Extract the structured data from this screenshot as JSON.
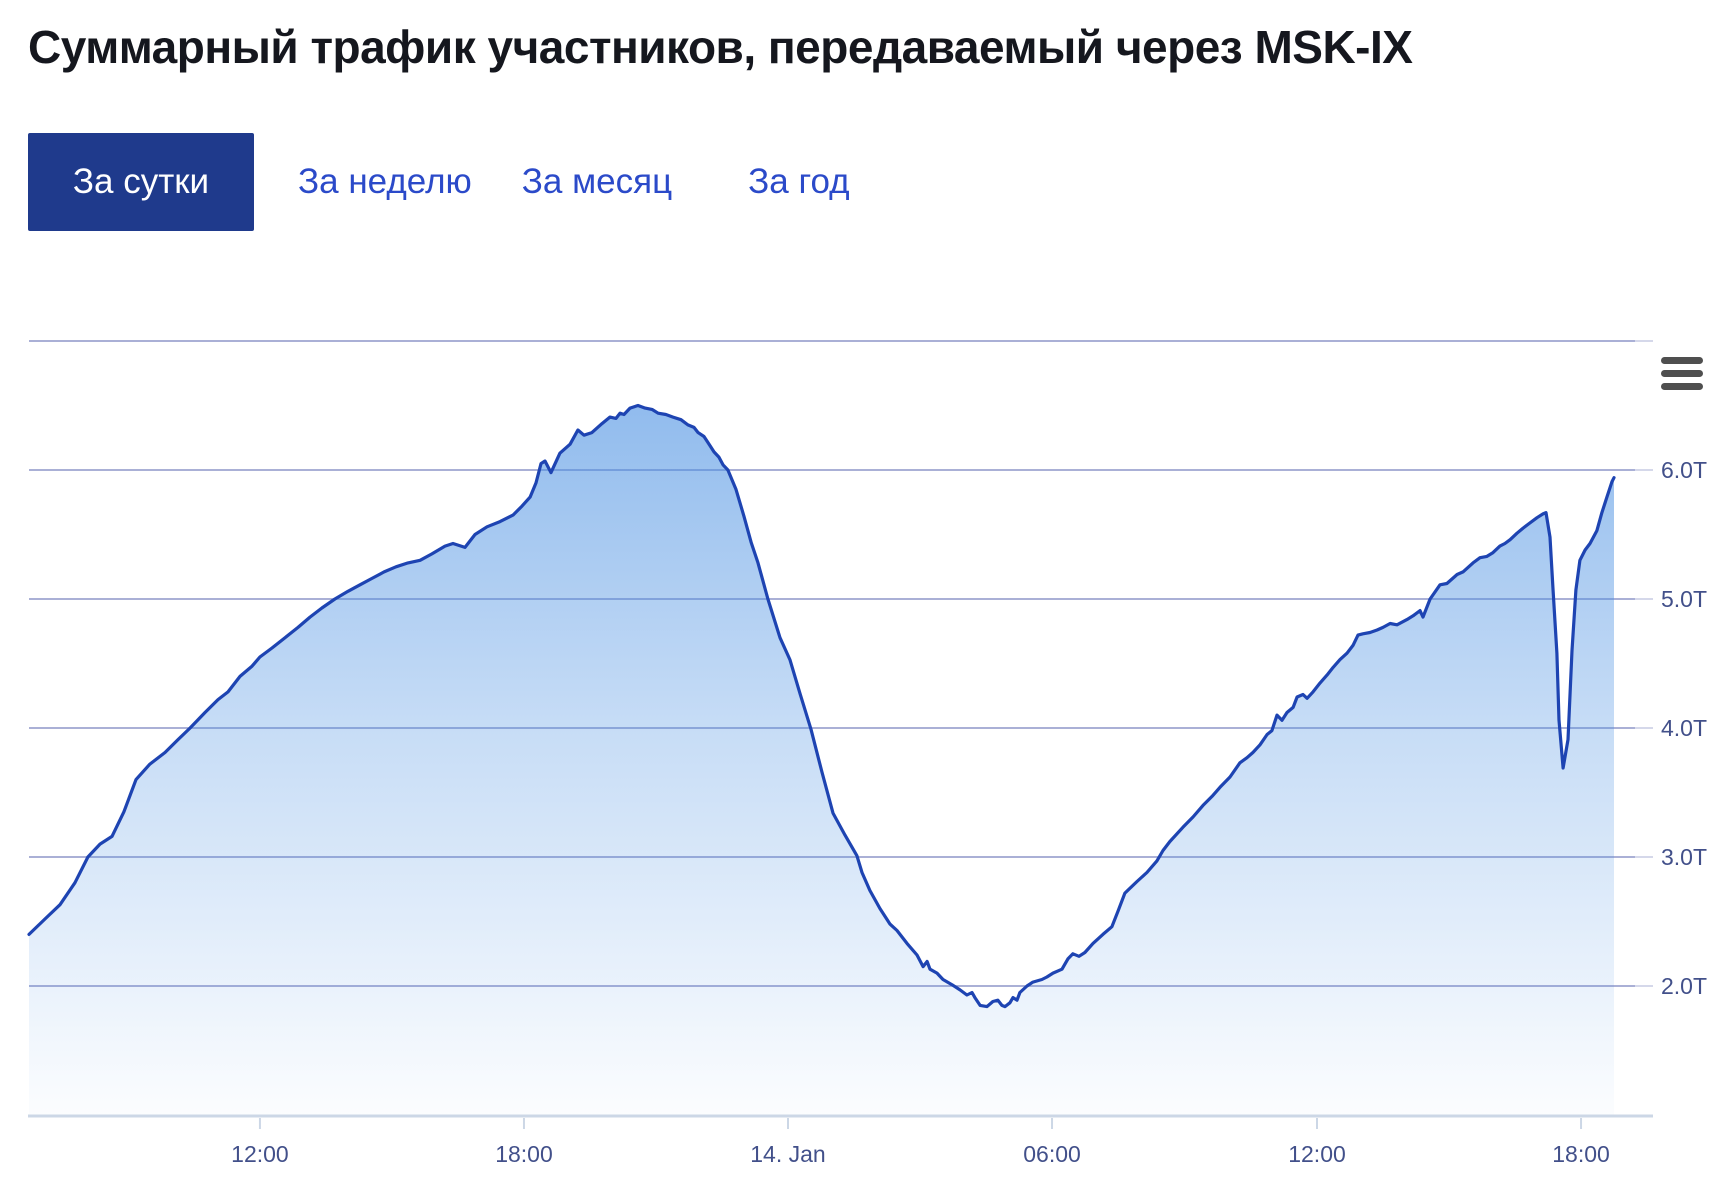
{
  "header": {
    "title": "Суммарный трафик участников, передаваемый через MSK-IX"
  },
  "tabs": {
    "items": [
      {
        "label": "За сутки",
        "active": true
      },
      {
        "label": "За неделю",
        "active": false
      },
      {
        "label": "За месяц",
        "active": false
      },
      {
        "label": "За год",
        "active": false
      }
    ]
  },
  "chart": {
    "context_menu_icon": "hamburger-menu-icon",
    "colors": {
      "title_text": "#15171e",
      "accent_tab_bg": "#1f3a8c",
      "tab_link": "#2b4ac9",
      "line": "#1e44b2",
      "fill_base": "#4a90e2",
      "gridline": "#8e96c9",
      "tick_extension": "#c7cce4",
      "axis_line": "#ccd7e6",
      "axis_label": "#42508a",
      "menu_icon_color": "#4f4f4f"
    }
  },
  "chart_data": {
    "type": "area",
    "title": "Суммарный трафик участников, передаваемый через MSK-IX",
    "grid": true,
    "legend": false,
    "x_axis": {
      "type": "time",
      "ticks": [
        {
          "label": "12:00",
          "f": 0.1438
        },
        {
          "label": "18:00",
          "f": 0.3082
        },
        {
          "label": "14. Jan",
          "f": 0.4726
        },
        {
          "label": "06:00",
          "f": 0.637
        },
        {
          "label": "12:00",
          "f": 0.802
        },
        {
          "label": "18:00",
          "f": 0.9664
        }
      ]
    },
    "y_axis": {
      "min": 1.0,
      "max": 7.0,
      "gridline_interval": 1.0,
      "labels_side": "right",
      "unit_suffix": "T",
      "labeled_ticks": [
        {
          "value": 6,
          "label": "6.0T"
        },
        {
          "value": 5,
          "label": "5.0T"
        },
        {
          "value": 4,
          "label": "4.0T"
        },
        {
          "value": 3,
          "label": "3.0T"
        },
        {
          "value": 2,
          "label": "2.0T"
        }
      ]
    },
    "series": [
      {
        "name": "Суммарный трафик",
        "unit": "T",
        "points": [
          [
            0.0,
            2.4
          ],
          [
            0.01,
            2.52
          ],
          [
            0.0193,
            2.63
          ],
          [
            0.0286,
            2.8
          ],
          [
            0.0367,
            3.0
          ],
          [
            0.0442,
            3.1
          ],
          [
            0.0517,
            3.16
          ],
          [
            0.0591,
            3.35
          ],
          [
            0.0666,
            3.6
          ],
          [
            0.0753,
            3.72
          ],
          [
            0.0847,
            3.81
          ],
          [
            0.0928,
            3.91
          ],
          [
            0.1003,
            4.0
          ],
          [
            0.1096,
            4.12
          ],
          [
            0.1177,
            4.22
          ],
          [
            0.1239,
            4.28
          ],
          [
            0.1314,
            4.4
          ],
          [
            0.1389,
            4.48
          ],
          [
            0.1438,
            4.55
          ],
          [
            0.1513,
            4.62
          ],
          [
            0.1594,
            4.7
          ],
          [
            0.1675,
            4.78
          ],
          [
            0.175,
            4.86
          ],
          [
            0.1824,
            4.93
          ],
          [
            0.1905,
            5.0
          ],
          [
            0.1986,
            5.06
          ],
          [
            0.2061,
            5.11
          ],
          [
            0.2136,
            5.16
          ],
          [
            0.2211,
            5.21
          ],
          [
            0.2285,
            5.25
          ],
          [
            0.236,
            5.28
          ],
          [
            0.2435,
            5.3
          ],
          [
            0.2509,
            5.35
          ],
          [
            0.259,
            5.41
          ],
          [
            0.264,
            5.43
          ],
          [
            0.2715,
            5.4
          ],
          [
            0.2777,
            5.5
          ],
          [
            0.2852,
            5.56
          ],
          [
            0.2933,
            5.6
          ],
          [
            0.3014,
            5.65
          ],
          [
            0.307,
            5.72
          ],
          [
            0.312,
            5.79
          ],
          [
            0.3157,
            5.9
          ],
          [
            0.3188,
            6.05
          ],
          [
            0.3213,
            6.07
          ],
          [
            0.325,
            5.98
          ],
          [
            0.3306,
            6.13
          ],
          [
            0.3369,
            6.2
          ],
          [
            0.3418,
            6.31
          ],
          [
            0.3456,
            6.27
          ],
          [
            0.3505,
            6.29
          ],
          [
            0.3568,
            6.36
          ],
          [
            0.3617,
            6.41
          ],
          [
            0.3655,
            6.4
          ],
          [
            0.368,
            6.44
          ],
          [
            0.3705,
            6.43
          ],
          [
            0.3742,
            6.48
          ],
          [
            0.3792,
            6.5
          ],
          [
            0.3836,
            6.48
          ],
          [
            0.3879,
            6.47
          ],
          [
            0.3917,
            6.44
          ],
          [
            0.3966,
            6.43
          ],
          [
            0.401,
            6.41
          ],
          [
            0.406,
            6.39
          ],
          [
            0.4103,
            6.35
          ],
          [
            0.4141,
            6.33
          ],
          [
            0.4166,
            6.29
          ],
          [
            0.4203,
            6.26
          ],
          [
            0.424,
            6.19
          ],
          [
            0.4265,
            6.14
          ],
          [
            0.4296,
            6.1
          ],
          [
            0.4321,
            6.04
          ],
          [
            0.4352,
            6.0
          ],
          [
            0.4402,
            5.85
          ],
          [
            0.4452,
            5.64
          ],
          [
            0.4496,
            5.44
          ],
          [
            0.4539,
            5.28
          ],
          [
            0.4601,
            5.0
          ],
          [
            0.4676,
            4.7
          ],
          [
            0.4738,
            4.53
          ],
          [
            0.48,
            4.27
          ],
          [
            0.4869,
            3.99
          ],
          [
            0.4937,
            3.66
          ],
          [
            0.5006,
            3.34
          ],
          [
            0.5081,
            3.17
          ],
          [
            0.5155,
            3.01
          ],
          [
            0.5187,
            2.88
          ],
          [
            0.5236,
            2.74
          ],
          [
            0.5299,
            2.6
          ],
          [
            0.5361,
            2.48
          ],
          [
            0.5405,
            2.43
          ],
          [
            0.5467,
            2.33
          ],
          [
            0.5529,
            2.24
          ],
          [
            0.5567,
            2.15
          ],
          [
            0.5592,
            2.19
          ],
          [
            0.561,
            2.13
          ],
          [
            0.5654,
            2.1
          ],
          [
            0.5691,
            2.05
          ],
          [
            0.5747,
            2.01
          ],
          [
            0.5797,
            1.97
          ],
          [
            0.584,
            1.93
          ],
          [
            0.5872,
            1.95
          ],
          [
            0.589,
            1.91
          ],
          [
            0.5922,
            1.85
          ],
          [
            0.5965,
            1.84
          ],
          [
            0.6002,
            1.88
          ],
          [
            0.6033,
            1.89
          ],
          [
            0.6058,
            1.85
          ],
          [
            0.6077,
            1.84
          ],
          [
            0.6108,
            1.87
          ],
          [
            0.6127,
            1.91
          ],
          [
            0.6152,
            1.89
          ],
          [
            0.617,
            1.95
          ],
          [
            0.6214,
            2.0
          ],
          [
            0.6251,
            2.03
          ],
          [
            0.6307,
            2.05
          ],
          [
            0.6338,
            2.07
          ],
          [
            0.6376,
            2.1
          ],
          [
            0.6432,
            2.13
          ],
          [
            0.6469,
            2.21
          ],
          [
            0.65,
            2.25
          ],
          [
            0.6538,
            2.23
          ],
          [
            0.6575,
            2.26
          ],
          [
            0.6625,
            2.33
          ],
          [
            0.6687,
            2.4
          ],
          [
            0.6743,
            2.46
          ],
          [
            0.6781,
            2.58
          ],
          [
            0.6824,
            2.72
          ],
          [
            0.6899,
            2.81
          ],
          [
            0.6961,
            2.88
          ],
          [
            0.7023,
            2.97
          ],
          [
            0.7061,
            3.05
          ],
          [
            0.7104,
            3.12
          ],
          [
            0.7185,
            3.23
          ],
          [
            0.7248,
            3.31
          ],
          [
            0.731,
            3.4
          ],
          [
            0.7366,
            3.47
          ],
          [
            0.7416,
            3.54
          ],
          [
            0.7478,
            3.62
          ],
          [
            0.754,
            3.73
          ],
          [
            0.7584,
            3.77
          ],
          [
            0.7621,
            3.81
          ],
          [
            0.7665,
            3.87
          ],
          [
            0.7709,
            3.95
          ],
          [
            0.7739,
            3.98
          ],
          [
            0.7771,
            4.1
          ],
          [
            0.7802,
            4.06
          ],
          [
            0.7833,
            4.12
          ],
          [
            0.7871,
            4.16
          ],
          [
            0.7896,
            4.24
          ],
          [
            0.7933,
            4.26
          ],
          [
            0.7958,
            4.23
          ],
          [
            0.7995,
            4.28
          ],
          [
            0.8039,
            4.35
          ],
          [
            0.8082,
            4.41
          ],
          [
            0.812,
            4.47
          ],
          [
            0.8163,
            4.53
          ],
          [
            0.8207,
            4.58
          ],
          [
            0.8244,
            4.64
          ],
          [
            0.8275,
            4.72
          ],
          [
            0.8306,
            4.73
          ],
          [
            0.835,
            4.74
          ],
          [
            0.8394,
            4.76
          ],
          [
            0.8431,
            4.78
          ],
          [
            0.8475,
            4.81
          ],
          [
            0.8518,
            4.8
          ],
          [
            0.858,
            4.84
          ],
          [
            0.8618,
            4.87
          ],
          [
            0.8661,
            4.91
          ],
          [
            0.868,
            4.86
          ],
          [
            0.8724,
            5.0
          ],
          [
            0.8786,
            5.11
          ],
          [
            0.8829,
            5.12
          ],
          [
            0.8892,
            5.19
          ],
          [
            0.8929,
            5.21
          ],
          [
            0.8991,
            5.28
          ],
          [
            0.9035,
            5.32
          ],
          [
            0.9078,
            5.33
          ],
          [
            0.9116,
            5.36
          ],
          [
            0.9159,
            5.41
          ],
          [
            0.919,
            5.43
          ],
          [
            0.9222,
            5.46
          ],
          [
            0.9265,
            5.51
          ],
          [
            0.9303,
            5.55
          ],
          [
            0.9346,
            5.59
          ],
          [
            0.939,
            5.63
          ],
          [
            0.9427,
            5.66
          ],
          [
            0.9446,
            5.67
          ],
          [
            0.9471,
            5.48
          ],
          [
            0.9489,
            5.09
          ],
          [
            0.9514,
            4.58
          ],
          [
            0.9527,
            4.06
          ],
          [
            0.9552,
            3.69
          ],
          [
            0.9583,
            3.91
          ],
          [
            0.9608,
            4.6
          ],
          [
            0.9632,
            5.07
          ],
          [
            0.9657,
            5.3
          ],
          [
            0.9689,
            5.38
          ],
          [
            0.972,
            5.43
          ],
          [
            0.9763,
            5.53
          ],
          [
            0.9794,
            5.67
          ],
          [
            0.9825,
            5.79
          ],
          [
            0.9857,
            5.91
          ],
          [
            0.9869,
            5.94
          ]
        ]
      }
    ]
  }
}
